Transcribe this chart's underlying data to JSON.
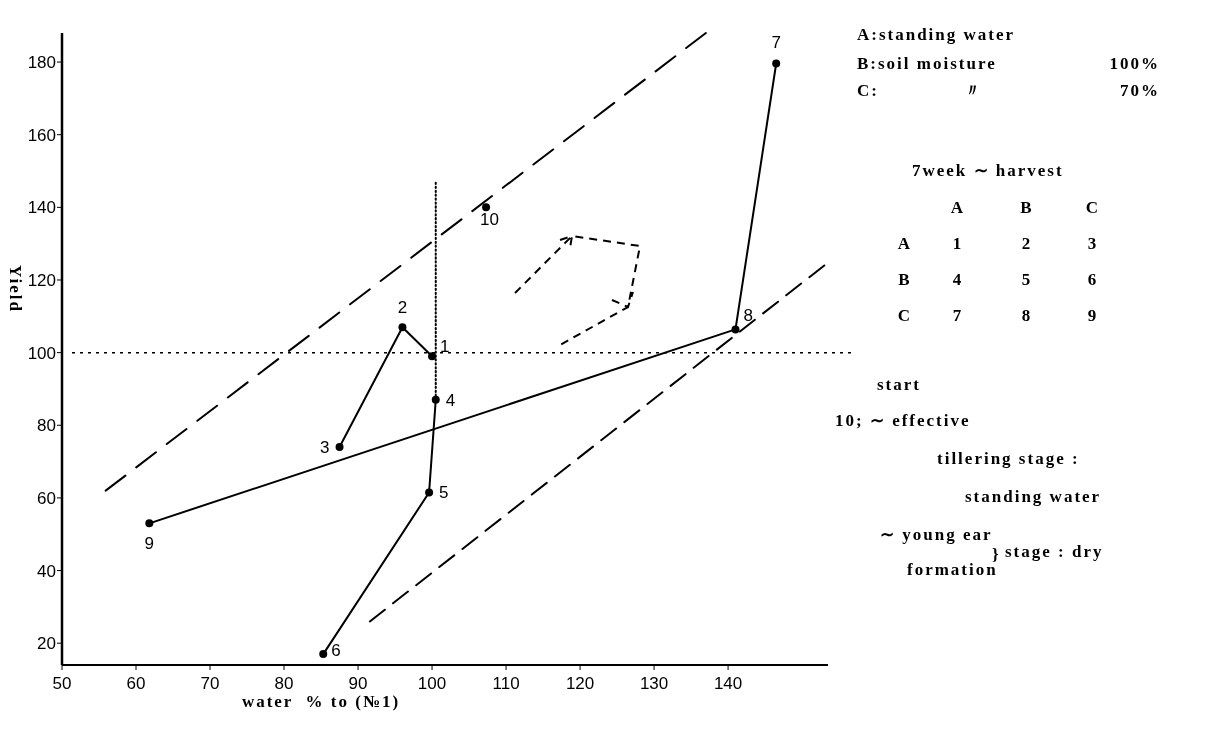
{
  "chart_data": {
    "type": "line",
    "xlabel": "water  % to (№1)",
    "ylabel": "Yield",
    "xlim": [
      50,
      153.5
    ],
    "ylim": [
      14,
      188
    ],
    "xticks": [
      50,
      60,
      70,
      80,
      90,
      100,
      110,
      120,
      130,
      140
    ],
    "yticks": [
      20,
      40,
      60,
      80,
      100,
      120,
      140,
      160,
      180
    ],
    "grid": false,
    "series": [
      {
        "color": "#000000",
        "x": [
          87.5,
          96,
          100
        ],
        "values": [
          74,
          107,
          99
        ],
        "marker": "circle",
        "line_style": "solid"
      },
      {
        "color": "#000000",
        "x": [
          100.5,
          99.6,
          85.3
        ],
        "values": [
          87,
          61.5,
          17
        ],
        "marker": "circle",
        "line_style": "solid"
      },
      {
        "color": "#000000",
        "x": [
          61.8,
          141,
          146.5
        ],
        "values": [
          53,
          106.4,
          179.6
        ],
        "marker": "circle",
        "line_style": "solid"
      },
      {
        "type": "scatter",
        "color": "#000000",
        "x": [
          107.3
        ],
        "values": [
          140
        ],
        "marker": "circle"
      },
      {
        "color": "#000000",
        "x": [
          55.9,
          137
        ],
        "values": [
          62,
          188
        ],
        "marker": "none",
        "line_style": "dashed"
      },
      {
        "color": "#000000",
        "x": [
          91.6,
          153
        ],
        "values": [
          26,
          124
        ],
        "marker": "none",
        "line_style": "dashed"
      },
      {
        "color": "#000000",
        "x": [
          100.5,
          100.5
        ],
        "values": [
          87,
          147
        ],
        "marker": "none",
        "line_style": "dotted"
      }
    ],
    "ref_lines": [
      {
        "axis": "y",
        "value": 100,
        "line_style": "dotted",
        "color": "#000000"
      }
    ],
    "annotations": [
      {
        "text": "1",
        "x": 100,
        "y": 99
      },
      {
        "text": "2",
        "x": 96,
        "y": 107
      },
      {
        "text": "3",
        "x": 87.5,
        "y": 74
      },
      {
        "text": "4",
        "x": 100.5,
        "y": 87
      },
      {
        "text": "5",
        "x": 99.6,
        "y": 61.5
      },
      {
        "text": "6",
        "x": 85.3,
        "y": 17
      },
      {
        "text": "7",
        "x": 146.5,
        "y": 179.6
      },
      {
        "text": "8",
        "x": 141,
        "y": 106.4
      },
      {
        "text": "9",
        "x": 61.8,
        "y": 53
      },
      {
        "text": "10",
        "x": 107.3,
        "y": 140
      },
      "A:standing water",
      "B:soil moisture",
      "100%",
      "C:",
      "〃",
      "70%",
      "7week ∼ harvest",
      "A",
      "B",
      "C",
      "A",
      "1",
      "2",
      "3",
      "B",
      "4",
      "5",
      "6",
      "C",
      "7",
      "8",
      "9",
      "start",
      "10; ∼ effective",
      "tillering stage :",
      "standing water",
      "∼ young ear",
      "formation",
      "}",
      "stage : dry"
    ]
  }
}
